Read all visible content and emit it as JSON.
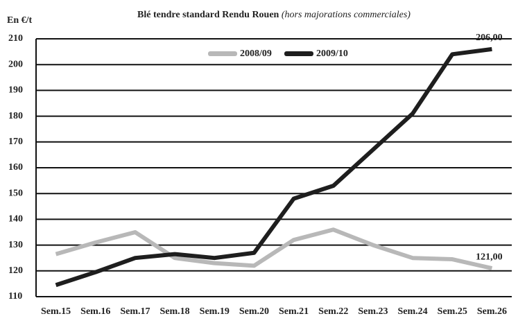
{
  "chart_data": {
    "type": "line",
    "title": "Blé tendre standard Rendu Rouen",
    "subtitle": "(hors majorations commerciales)",
    "y_label": "En €/t",
    "categories": [
      "Sem.15",
      "Sem.16",
      "Sem.17",
      "Sem.18",
      "Sem.19",
      "Sem.20",
      "Sem.21",
      "Sem.22",
      "Sem.23",
      "Sem.24",
      "Sem.25",
      "Sem.26"
    ],
    "series": [
      {
        "name": "2008/09",
        "color": "#b8b8b8",
        "values": [
          126.5,
          131,
          135,
          125,
          123,
          122,
          132,
          136,
          130,
          125,
          124.5,
          121
        ],
        "value_labels": [
          null,
          null,
          null,
          null,
          null,
          null,
          null,
          null,
          null,
          null,
          null,
          "121,00"
        ]
      },
      {
        "name": "2009/10",
        "color": "#1e1e1e",
        "values": [
          114.5,
          119.5,
          125,
          126.5,
          125,
          127,
          148,
          153,
          167,
          181,
          204,
          206
        ],
        "value_labels": [
          null,
          null,
          null,
          null,
          null,
          null,
          null,
          null,
          null,
          null,
          null,
          "206,00"
        ]
      }
    ],
    "ylim": [
      110,
      210
    ],
    "yticks": [
      110,
      120,
      130,
      140,
      150,
      160,
      170,
      180,
      190,
      200,
      210
    ],
    "grid": true
  }
}
